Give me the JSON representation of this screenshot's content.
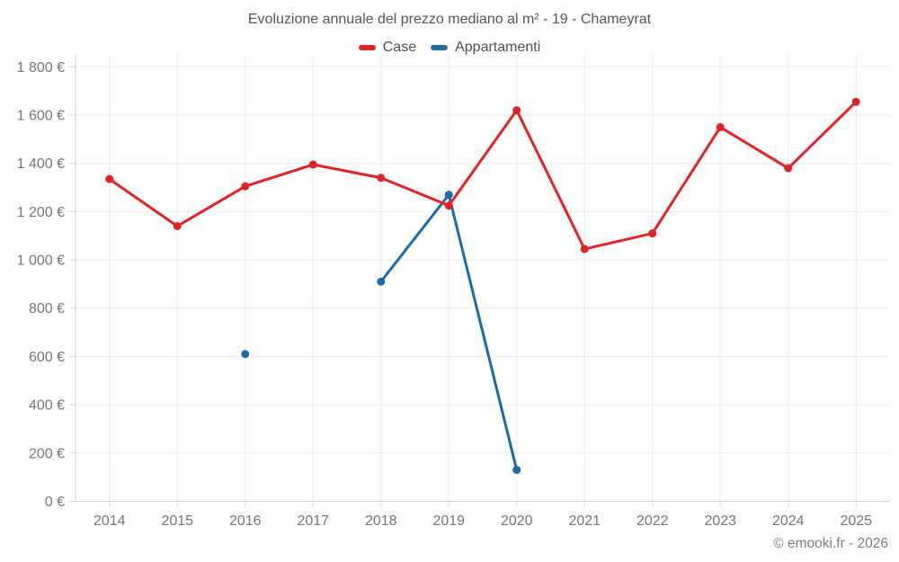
{
  "title": "Evoluzione annuale del prezzo mediano al m² - 19 - Chameyrat",
  "footer": "© emooki.fr - 2026",
  "colors": {
    "case_red": "#e02329",
    "appartamenti_blue": "#1a6ba6",
    "gridline": "#ebebeb",
    "axis_border": "#d2d2d2",
    "tick_text": "#757575",
    "title_text": "#555555",
    "footer_text": "#7c7c7c"
  },
  "chart_data": {
    "type": "line",
    "title": "Evoluzione annuale del prezzo mediano al m² - 19 - Chameyrat",
    "categories": [
      "2014",
      "2015",
      "2016",
      "2017",
      "2018",
      "2019",
      "2020",
      "2021",
      "2022",
      "2023",
      "2024",
      "2025"
    ],
    "series": [
      {
        "name": "Case",
        "color": "#e02329",
        "values": [
          1335,
          1140,
          1305,
          1395,
          1340,
          1225,
          1620,
          1045,
          1110,
          1550,
          1380,
          1655
        ]
      },
      {
        "name": "Appartamenti",
        "color": "#1a6ba6",
        "values": [
          null,
          null,
          610,
          null,
          910,
          1270,
          130,
          null,
          null,
          null,
          null,
          null
        ]
      }
    ],
    "xlabel": "",
    "ylabel": "",
    "ylim": [
      0,
      1800
    ],
    "ytick_step": 200,
    "ytick_labels": [
      "0 €",
      "200 €",
      "400 €",
      "600 €",
      "800 €",
      "1 000 €",
      "1 200 €",
      "1 400 €",
      "1 600 €",
      "1 800 €"
    ],
    "grid": true,
    "legend_position": "top",
    "gap_handling": "isolated points shown as markers, nulls break the line"
  }
}
